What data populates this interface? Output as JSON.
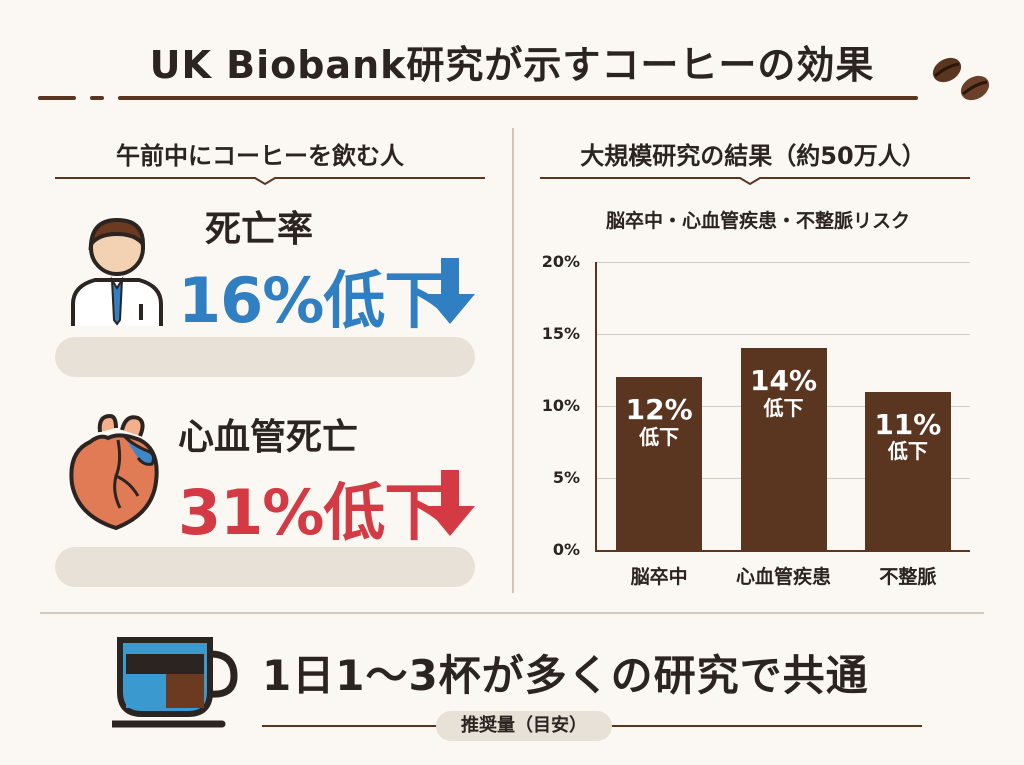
{
  "header": {
    "title": "UK Biobank研究が示すコーヒーの効果"
  },
  "left": {
    "heading": "午前中にコーヒーを飲む人",
    "stats": [
      {
        "label": "死亡率",
        "value": "16%低下",
        "color": "#2f7fc2",
        "icon": "person-icon",
        "arrow": "down-arrow-icon"
      },
      {
        "label": "心血管死亡",
        "value": "31%低下",
        "color": "#d33a44",
        "icon": "heart-icon",
        "arrow": "down-arrow-icon"
      }
    ]
  },
  "right": {
    "heading": "大規模研究の結果（約50万人）",
    "subheading": "脳卒中・心血管疾患・不整脈リスク"
  },
  "chart_data": {
    "type": "bar",
    "title": "脳卒中・心血管疾患・不整脈リスク",
    "categories": [
      "脳卒中",
      "心血管疾患",
      "不整脈"
    ],
    "values": [
      12,
      14,
      11
    ],
    "data_labels": [
      {
        "pct": "12%",
        "sub": "低下"
      },
      {
        "pct": "14%",
        "sub": "低下"
      },
      {
        "pct": "11%",
        "sub": "低下"
      }
    ],
    "yticks": [
      "0%",
      "5%",
      "10%",
      "15%",
      "20%"
    ],
    "ylim": [
      0,
      20
    ],
    "grid": true,
    "bar_color": "#5a3520",
    "xlabel": "",
    "ylabel": ""
  },
  "footer": {
    "headline": "1日1～3杯が多くの研究で共通",
    "badge": "推奨量（目安）"
  },
  "colors": {
    "brown": "#5a3520",
    "blue": "#2f7fc2",
    "red": "#d33a44",
    "pill": "#e7e1d8"
  }
}
